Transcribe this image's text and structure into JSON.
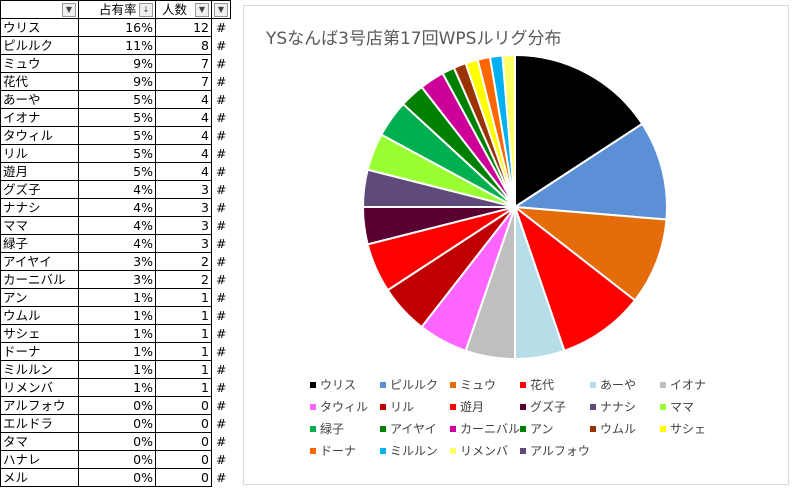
{
  "sheet": {
    "headers": {
      "name": "",
      "share": "占有率",
      "count": "人数",
      "extra": ""
    },
    "rows": [
      {
        "name": "ウリス",
        "share": "16%",
        "count": "12",
        "extra": "#"
      },
      {
        "name": "ピルルク",
        "share": "11%",
        "count": "8",
        "extra": "#"
      },
      {
        "name": "ミュウ",
        "share": "9%",
        "count": "7",
        "extra": "#"
      },
      {
        "name": "花代",
        "share": "9%",
        "count": "7",
        "extra": "#"
      },
      {
        "name": "あーや",
        "share": "5%",
        "count": "4",
        "extra": "#"
      },
      {
        "name": "イオナ",
        "share": "5%",
        "count": "4",
        "extra": "#"
      },
      {
        "name": "タウィル",
        "share": "5%",
        "count": "4",
        "extra": "#"
      },
      {
        "name": "リル",
        "share": "5%",
        "count": "4",
        "extra": "#"
      },
      {
        "name": "遊月",
        "share": "5%",
        "count": "4",
        "extra": "#"
      },
      {
        "name": "グズ子",
        "share": "4%",
        "count": "3",
        "extra": "#"
      },
      {
        "name": "ナナシ",
        "share": "4%",
        "count": "3",
        "extra": "#"
      },
      {
        "name": "ママ",
        "share": "4%",
        "count": "3",
        "extra": "#"
      },
      {
        "name": "緑子",
        "share": "4%",
        "count": "3",
        "extra": "#"
      },
      {
        "name": "アイヤイ",
        "share": "3%",
        "count": "2",
        "extra": "#"
      },
      {
        "name": "カーニバル",
        "share": "3%",
        "count": "2",
        "extra": "#"
      },
      {
        "name": "アン",
        "share": "1%",
        "count": "1",
        "extra": "#"
      },
      {
        "name": "ウムル",
        "share": "1%",
        "count": "1",
        "extra": "#"
      },
      {
        "name": "サシェ",
        "share": "1%",
        "count": "1",
        "extra": "#"
      },
      {
        "name": "ドーナ",
        "share": "1%",
        "count": "1",
        "extra": "#"
      },
      {
        "name": "ミルルン",
        "share": "1%",
        "count": "1",
        "extra": "#"
      },
      {
        "name": "リメンバ",
        "share": "1%",
        "count": "1",
        "extra": "#"
      },
      {
        "name": "アルフォウ",
        "share": "0%",
        "count": "0",
        "extra": "#"
      },
      {
        "name": "エルドラ",
        "share": "0%",
        "count": "0",
        "extra": "#"
      },
      {
        "name": "タマ",
        "share": "0%",
        "count": "0",
        "extra": "#"
      },
      {
        "name": "ハナレ",
        "share": "0%",
        "count": "0",
        "extra": "#"
      },
      {
        "name": "メル",
        "share": "0%",
        "count": "0",
        "extra": "#"
      }
    ]
  },
  "chart_data": {
    "type": "pie",
    "title": "YSなんば3号店第17回WPSルリグ分布",
    "legend_placement": "bottom",
    "categories": [
      "ウリス",
      "ピルルク",
      "ミュウ",
      "花代",
      "あーや",
      "イオナ",
      "タウィル",
      "リル",
      "遊月",
      "グズ子",
      "ナナシ",
      "ママ",
      "緑子",
      "アイヤイ",
      "カーニバル",
      "アン",
      "ウムル",
      "サシェ",
      "ドーナ",
      "ミルルン",
      "リメンバ",
      "アルフォウ"
    ],
    "values": [
      12,
      8,
      7,
      7,
      4,
      4,
      4,
      4,
      4,
      3,
      3,
      3,
      3,
      2,
      2,
      1,
      1,
      1,
      1,
      1,
      1,
      0
    ],
    "colors": [
      "#000000",
      "#5b8fd6",
      "#e46c0a",
      "#ff0000",
      "#b7dde8",
      "#bfbfbf",
      "#ff66ff",
      "#c00000",
      "#ff0000",
      "#5a0030",
      "#604a7b",
      "#99ff33",
      "#00b050",
      "#008000",
      "#cc0099",
      "#008000",
      "#993300",
      "#ffff00",
      "#ff6600",
      "#00b0f0",
      "#ffff66",
      "#604a7b"
    ]
  }
}
